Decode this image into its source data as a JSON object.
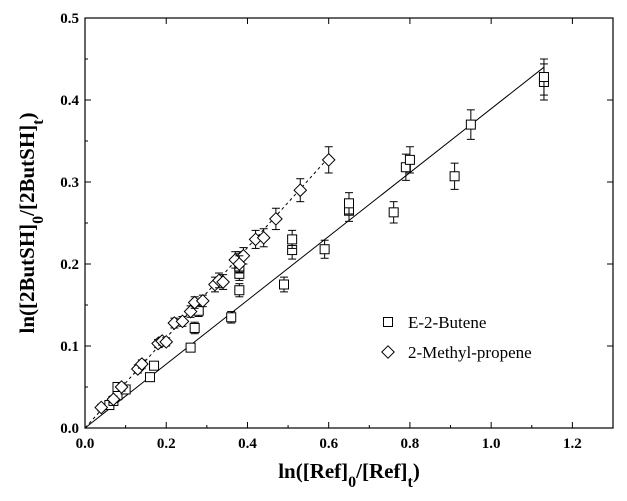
{
  "chart_data": {
    "type": "scatter",
    "title": "",
    "xlabel": {
      "parts": [
        {
          "t": "ln([Ref]",
          "sub": false
        },
        {
          "t": "0",
          "sub": true
        },
        {
          "t": "/[Ref]",
          "sub": false
        },
        {
          "t": "t",
          "sub": true
        },
        {
          "t": ")",
          "sub": false
        }
      ]
    },
    "ylabel": {
      "parts": [
        {
          "t": "ln([2ButSH]",
          "sub": false
        },
        {
          "t": "0",
          "sub": true
        },
        {
          "t": "/[2ButSH]",
          "sub": false
        },
        {
          "t": "t",
          "sub": true
        },
        {
          "t": ")",
          "sub": false
        }
      ]
    },
    "xlim": [
      0.0,
      1.3
    ],
    "ylim": [
      0.0,
      0.5
    ],
    "xticks": [
      "0.0",
      "0.2",
      "0.4",
      "0.6",
      "0.8",
      "1.0",
      "1.2"
    ],
    "xtick_values": [
      0.0,
      0.2,
      0.4,
      0.6,
      0.8,
      1.0,
      1.2
    ],
    "yticks": [
      "0.0",
      "0.1",
      "0.2",
      "0.3",
      "0.4",
      "0.5"
    ],
    "ytick_values": [
      0.0,
      0.1,
      0.2,
      0.3,
      0.4,
      0.5
    ],
    "grid": false,
    "legend_position": "center-right",
    "series": [
      {
        "name": "E-2-Butene",
        "marker": "square",
        "fit_line": {
          "style": "solid",
          "x": [
            0.0,
            1.13
          ],
          "y": [
            0.0,
            0.44
          ]
        },
        "points": [
          {
            "x": 0.06,
            "y": 0.028,
            "err": 0.004
          },
          {
            "x": 0.07,
            "y": 0.033,
            "err": 0.004
          },
          {
            "x": 0.08,
            "y": 0.04,
            "err": 0.005
          },
          {
            "x": 0.08,
            "y": 0.05,
            "err": 0.005
          },
          {
            "x": 0.1,
            "y": 0.047,
            "err": 0.005
          },
          {
            "x": 0.16,
            "y": 0.062,
            "err": 0.005
          },
          {
            "x": 0.17,
            "y": 0.076,
            "err": 0.005
          },
          {
            "x": 0.26,
            "y": 0.098,
            "err": 0.005
          },
          {
            "x": 0.27,
            "y": 0.122,
            "err": 0.007
          },
          {
            "x": 0.28,
            "y": 0.143,
            "err": 0.007
          },
          {
            "x": 0.36,
            "y": 0.135,
            "err": 0.007
          },
          {
            "x": 0.38,
            "y": 0.168,
            "err": 0.008
          },
          {
            "x": 0.38,
            "y": 0.188,
            "err": 0.008
          },
          {
            "x": 0.38,
            "y": 0.197,
            "err": 0.008
          },
          {
            "x": 0.38,
            "y": 0.207,
            "err": 0.008
          },
          {
            "x": 0.49,
            "y": 0.175,
            "err": 0.009
          },
          {
            "x": 0.51,
            "y": 0.217,
            "err": 0.011
          },
          {
            "x": 0.51,
            "y": 0.23,
            "err": 0.011
          },
          {
            "x": 0.59,
            "y": 0.218,
            "err": 0.011
          },
          {
            "x": 0.65,
            "y": 0.265,
            "err": 0.013
          },
          {
            "x": 0.65,
            "y": 0.274,
            "err": 0.013
          },
          {
            "x": 0.76,
            "y": 0.263,
            "err": 0.013
          },
          {
            "x": 0.79,
            "y": 0.318,
            "err": 0.016
          },
          {
            "x": 0.8,
            "y": 0.327,
            "err": 0.016
          },
          {
            "x": 0.91,
            "y": 0.307,
            "err": 0.016
          },
          {
            "x": 0.95,
            "y": 0.37,
            "err": 0.018
          },
          {
            "x": 1.13,
            "y": 0.422,
            "err": 0.022
          },
          {
            "x": 1.13,
            "y": 0.428,
            "err": 0.022
          }
        ]
      },
      {
        "name": "2-Methyl-propene",
        "marker": "diamond",
        "fit_line": {
          "style": "dashed",
          "x": [
            0.0,
            0.6
          ],
          "y": [
            0.0,
            0.33
          ]
        },
        "points": [
          {
            "x": 0.04,
            "y": 0.025,
            "err": 0.004
          },
          {
            "x": 0.07,
            "y": 0.035,
            "err": 0.004
          },
          {
            "x": 0.09,
            "y": 0.05,
            "err": 0.005
          },
          {
            "x": 0.13,
            "y": 0.072,
            "err": 0.005
          },
          {
            "x": 0.14,
            "y": 0.078,
            "err": 0.005
          },
          {
            "x": 0.18,
            "y": 0.103,
            "err": 0.005
          },
          {
            "x": 0.19,
            "y": 0.106,
            "err": 0.005
          },
          {
            "x": 0.2,
            "y": 0.105,
            "err": 0.005
          },
          {
            "x": 0.22,
            "y": 0.128,
            "err": 0.006
          },
          {
            "x": 0.24,
            "y": 0.13,
            "err": 0.006
          },
          {
            "x": 0.26,
            "y": 0.142,
            "err": 0.007
          },
          {
            "x": 0.27,
            "y": 0.153,
            "err": 0.007
          },
          {
            "x": 0.29,
            "y": 0.155,
            "err": 0.007
          },
          {
            "x": 0.32,
            "y": 0.175,
            "err": 0.009
          },
          {
            "x": 0.33,
            "y": 0.18,
            "err": 0.009
          },
          {
            "x": 0.34,
            "y": 0.178,
            "err": 0.009
          },
          {
            "x": 0.37,
            "y": 0.205,
            "err": 0.01
          },
          {
            "x": 0.39,
            "y": 0.21,
            "err": 0.01
          },
          {
            "x": 0.38,
            "y": 0.2,
            "err": 0.01
          },
          {
            "x": 0.42,
            "y": 0.23,
            "err": 0.011
          },
          {
            "x": 0.44,
            "y": 0.232,
            "err": 0.011
          },
          {
            "x": 0.47,
            "y": 0.255,
            "err": 0.013
          },
          {
            "x": 0.53,
            "y": 0.29,
            "err": 0.014
          },
          {
            "x": 0.6,
            "y": 0.327,
            "err": 0.016
          }
        ]
      }
    ]
  }
}
